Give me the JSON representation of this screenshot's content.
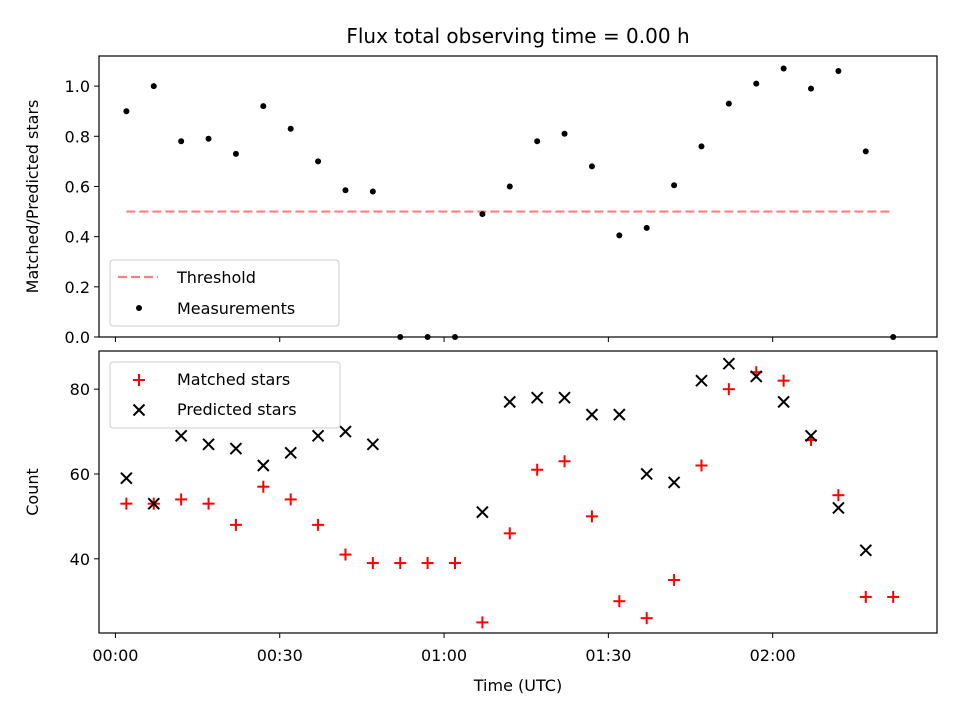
{
  "chart_data": [
    {
      "type": "scatter",
      "title": "Flux total observing time = 0.00 h",
      "xlabel": "",
      "ylabel": "Matched/Predicted stars",
      "ylim": [
        0,
        1.12
      ],
      "yticks": [
        "0.0",
        "0.2",
        "0.4",
        "0.6",
        "0.8",
        "1.0"
      ],
      "legend_position": "lower-left",
      "series": [
        {
          "name": "Threshold",
          "style": "dashed-line",
          "color": "#ff7f7f",
          "points": [
            {
              "x": "00:02",
              "y": 0.5
            },
            {
              "x": "02:22",
              "y": 0.5
            }
          ]
        },
        {
          "name": "Measurements",
          "style": "dot",
          "color": "#000000",
          "points": [
            {
              "x": "00:02",
              "y": 0.9
            },
            {
              "x": "00:07",
              "y": 1.0
            },
            {
              "x": "00:12",
              "y": 0.78
            },
            {
              "x": "00:17",
              "y": 0.79
            },
            {
              "x": "00:22",
              "y": 0.73
            },
            {
              "x": "00:27",
              "y": 0.92
            },
            {
              "x": "00:32",
              "y": 0.83
            },
            {
              "x": "00:37",
              "y": 0.7
            },
            {
              "x": "00:42",
              "y": 0.585
            },
            {
              "x": "00:47",
              "y": 0.58
            },
            {
              "x": "00:52",
              "y": 0.0
            },
            {
              "x": "00:57",
              "y": 0.0
            },
            {
              "x": "01:02",
              "y": 0.0
            },
            {
              "x": "01:07",
              "y": 0.49
            },
            {
              "x": "01:12",
              "y": 0.6
            },
            {
              "x": "01:17",
              "y": 0.78
            },
            {
              "x": "01:22",
              "y": 0.81
            },
            {
              "x": "01:27",
              "y": 0.68
            },
            {
              "x": "01:32",
              "y": 0.405
            },
            {
              "x": "01:37",
              "y": 0.435
            },
            {
              "x": "01:42",
              "y": 0.605
            },
            {
              "x": "01:47",
              "y": 0.76
            },
            {
              "x": "01:52",
              "y": 0.93
            },
            {
              "x": "01:57",
              "y": 1.01
            },
            {
              "x": "02:02",
              "y": 1.07
            },
            {
              "x": "02:07",
              "y": 0.99
            },
            {
              "x": "02:12",
              "y": 1.06
            },
            {
              "x": "02:17",
              "y": 0.74
            },
            {
              "x": "02:22",
              "y": 0.0
            }
          ]
        }
      ]
    },
    {
      "type": "scatter",
      "title": "",
      "xlabel": "Time (UTC)",
      "ylabel": "Count",
      "ylim": [
        22.5,
        89
      ],
      "yticks": [
        "40",
        "60",
        "80"
      ],
      "xticks": [
        "00:00",
        "00:30",
        "01:00",
        "01:30",
        "02:00"
      ],
      "legend_position": "upper-left",
      "series": [
        {
          "name": "Matched stars",
          "marker": "plus",
          "color": "#ff0000",
          "points": [
            {
              "x": "00:02",
              "y": 53
            },
            {
              "x": "00:07",
              "y": 53
            },
            {
              "x": "00:12",
              "y": 54
            },
            {
              "x": "00:17",
              "y": 53
            },
            {
              "x": "00:22",
              "y": 48
            },
            {
              "x": "00:27",
              "y": 57
            },
            {
              "x": "00:32",
              "y": 54
            },
            {
              "x": "00:37",
              "y": 48
            },
            {
              "x": "00:42",
              "y": 41
            },
            {
              "x": "00:47",
              "y": 39
            },
            {
              "x": "00:52",
              "y": 39
            },
            {
              "x": "00:57",
              "y": 39
            },
            {
              "x": "01:02",
              "y": 39
            },
            {
              "x": "01:07",
              "y": 25
            },
            {
              "x": "01:12",
              "y": 46
            },
            {
              "x": "01:17",
              "y": 61
            },
            {
              "x": "01:22",
              "y": 63
            },
            {
              "x": "01:27",
              "y": 50
            },
            {
              "x": "01:32",
              "y": 30
            },
            {
              "x": "01:37",
              "y": 26
            },
            {
              "x": "01:42",
              "y": 35
            },
            {
              "x": "01:47",
              "y": 62
            },
            {
              "x": "01:52",
              "y": 80
            },
            {
              "x": "01:57",
              "y": 84
            },
            {
              "x": "02:02",
              "y": 82
            },
            {
              "x": "02:07",
              "y": 68
            },
            {
              "x": "02:12",
              "y": 55
            },
            {
              "x": "02:17",
              "y": 31
            },
            {
              "x": "02:22",
              "y": 31
            }
          ]
        },
        {
          "name": "Predicted stars",
          "marker": "x",
          "color": "#000000",
          "points": [
            {
              "x": "00:02",
              "y": 59
            },
            {
              "x": "00:07",
              "y": 53
            },
            {
              "x": "00:12",
              "y": 69
            },
            {
              "x": "00:17",
              "y": 67
            },
            {
              "x": "00:22",
              "y": 66
            },
            {
              "x": "00:27",
              "y": 62
            },
            {
              "x": "00:32",
              "y": 65
            },
            {
              "x": "00:37",
              "y": 69
            },
            {
              "x": "00:42",
              "y": 70
            },
            {
              "x": "00:47",
              "y": 67
            },
            {
              "x": "01:07",
              "y": 51
            },
            {
              "x": "01:12",
              "y": 77
            },
            {
              "x": "01:17",
              "y": 78
            },
            {
              "x": "01:22",
              "y": 78
            },
            {
              "x": "01:27",
              "y": 74
            },
            {
              "x": "01:32",
              "y": 74
            },
            {
              "x": "01:37",
              "y": 60
            },
            {
              "x": "01:42",
              "y": 58
            },
            {
              "x": "01:47",
              "y": 82
            },
            {
              "x": "01:52",
              "y": 86
            },
            {
              "x": "01:57",
              "y": 83
            },
            {
              "x": "02:02",
              "y": 77
            },
            {
              "x": "02:07",
              "y": 69
            },
            {
              "x": "02:12",
              "y": 52
            },
            {
              "x": "02:17",
              "y": 42
            }
          ]
        }
      ]
    }
  ]
}
